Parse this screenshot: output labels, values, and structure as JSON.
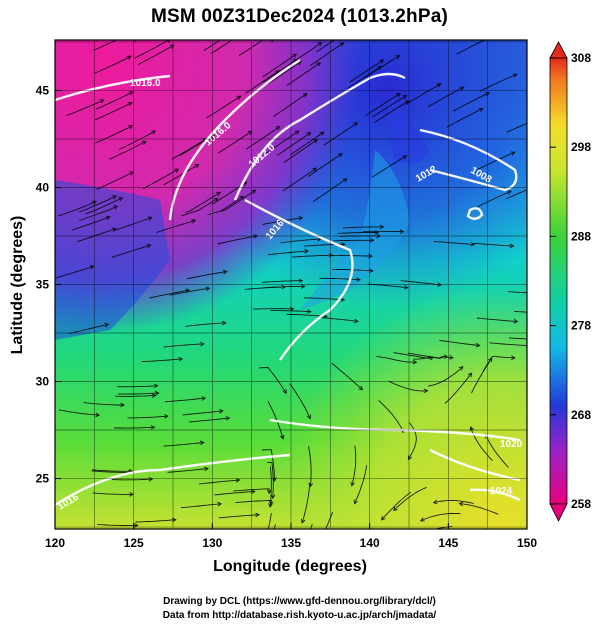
{
  "title": "MSM 00Z31Dec2024 (1013.2hPa)",
  "xlabel": "Longitude (degrees)",
  "ylabel": "Latitude  (degrees)",
  "credits": [
    "Drawing by DCL (https://www.gfd-dennou.org/library/dcl/)",
    "Data from http://database.rish.kyoto-u.ac.jp/arch/jmadata/"
  ],
  "map": {
    "lon_range": [
      120,
      150
    ],
    "lat_range": [
      22.4,
      47.6
    ],
    "x_ticks": [
      "120",
      "125",
      "130",
      "135",
      "140",
      "145",
      "150"
    ],
    "y_ticks": [
      "25",
      "30",
      "35",
      "40",
      "45"
    ],
    "field": "temperature (K) with streamlines and isobars",
    "isobar_labels": [
      "1016.0",
      "1016.0",
      "1012.0",
      "1008",
      "1012",
      "1016",
      "1020",
      "1024",
      "1016"
    ]
  },
  "colorbar": {
    "ticks": [
      "308",
      "298",
      "288",
      "278",
      "268",
      "258"
    ],
    "range": [
      258,
      308
    ]
  }
}
